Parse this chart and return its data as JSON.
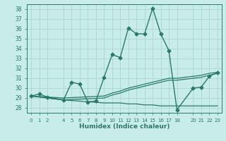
{
  "xlabel": "Humidex (Indice chaleur)",
  "bg_color": "#c8ece8",
  "grid_color": "#a8d8d0",
  "line_color": "#2a7a6a",
  "xlim": [
    -0.5,
    23.5
  ],
  "ylim": [
    27.5,
    38.5
  ],
  "xticks": [
    0,
    1,
    2,
    4,
    5,
    6,
    7,
    8,
    9,
    10,
    11,
    12,
    13,
    14,
    15,
    16,
    17,
    18,
    20,
    21,
    22,
    23
  ],
  "yticks": [
    28,
    29,
    30,
    31,
    32,
    33,
    34,
    35,
    36,
    37,
    38
  ],
  "series": [
    {
      "x": [
        0,
        1,
        2,
        4,
        5,
        6,
        7,
        8,
        9,
        10,
        11,
        12,
        13,
        14,
        15,
        16,
        17,
        18,
        20,
        21,
        22,
        23
      ],
      "y": [
        29.2,
        29.4,
        29.1,
        28.8,
        30.6,
        30.4,
        28.6,
        28.7,
        31.1,
        33.4,
        33.1,
        36.1,
        35.5,
        35.5,
        38.1,
        35.5,
        33.8,
        27.8,
        30.0,
        30.1,
        31.2,
        31.6
      ],
      "marker": "D",
      "markersize": 2.5,
      "linewidth": 1.0
    },
    {
      "x": [
        0,
        2,
        4,
        9,
        10,
        11,
        12,
        13,
        14,
        15,
        16,
        17,
        18,
        20,
        21,
        22,
        23
      ],
      "y": [
        29.2,
        29.0,
        28.8,
        29.0,
        29.3,
        29.5,
        29.8,
        30.0,
        30.2,
        30.4,
        30.6,
        30.8,
        30.8,
        31.0,
        31.1,
        31.3,
        31.5
      ],
      "marker": null,
      "linewidth": 0.9
    },
    {
      "x": [
        0,
        2,
        4,
        9,
        10,
        11,
        12,
        13,
        14,
        15,
        16,
        17,
        18,
        20,
        21,
        22,
        23
      ],
      "y": [
        29.2,
        29.0,
        28.8,
        28.5,
        28.5,
        28.5,
        28.4,
        28.4,
        28.3,
        28.3,
        28.2,
        28.2,
        28.2,
        28.2,
        28.2,
        28.2,
        28.2
      ],
      "marker": null,
      "linewidth": 0.9
    },
    {
      "x": [
        0,
        2,
        4,
        9,
        10,
        11,
        12,
        13,
        14,
        15,
        16,
        17,
        18,
        20,
        21,
        22,
        23
      ],
      "y": [
        29.2,
        29.1,
        29.0,
        29.2,
        29.5,
        29.7,
        30.0,
        30.2,
        30.4,
        30.6,
        30.8,
        31.0,
        31.0,
        31.2,
        31.3,
        31.5,
        31.6
      ],
      "marker": null,
      "linewidth": 0.9
    }
  ]
}
